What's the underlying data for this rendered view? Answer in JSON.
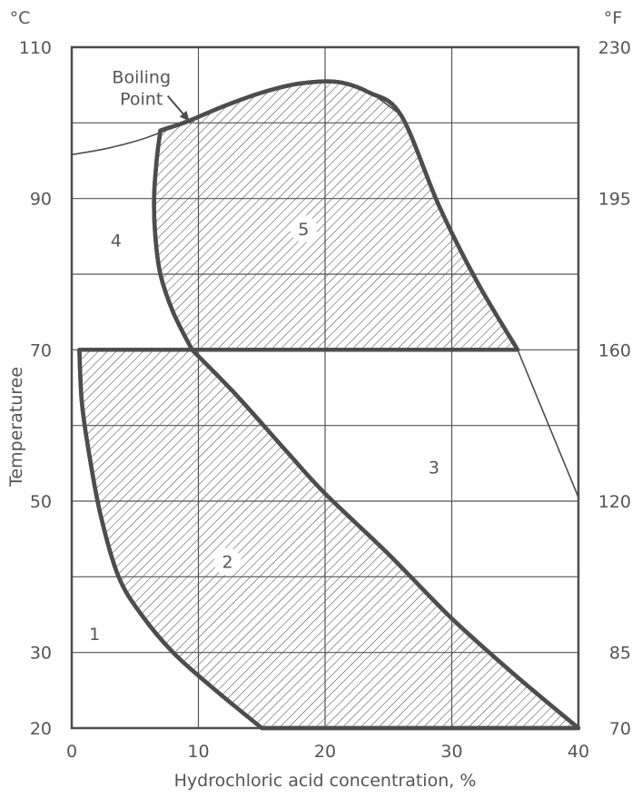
{
  "chart_data": {
    "type": "area",
    "xlabel": "Hydrochloric acid concentration, %",
    "ylabel": "Temperaturee",
    "y_unit_left": "°C",
    "y_unit_right": "°F",
    "xlim": [
      0,
      40
    ],
    "ylim": [
      20,
      110
    ],
    "grid": true,
    "x_ticks": [
      "0",
      "10",
      "20",
      "30",
      "40"
    ],
    "y_ticks_left": [
      {
        "value": 110,
        "label": "110"
      },
      {
        "value": 90,
        "label": "90"
      },
      {
        "value": 70,
        "label": "70"
      },
      {
        "value": 50,
        "label": "50"
      },
      {
        "value": 30,
        "label": "30"
      },
      {
        "value": 20,
        "label": "20"
      }
    ],
    "y_ticks_right": [
      {
        "value": 110,
        "label": "230"
      },
      {
        "value": 90,
        "label": "195"
      },
      {
        "value": 70,
        "label": "160"
      },
      {
        "value": 50,
        "label": "120"
      },
      {
        "value": 30,
        "label": "85"
      },
      {
        "value": 20,
        "label": "70"
      }
    ],
    "boiling_point_curve": [
      [
        0,
        95.8
      ],
      [
        3,
        96.7
      ],
      [
        6,
        98.1
      ],
      [
        9,
        100.1
      ],
      [
        12,
        102.2
      ],
      [
        15,
        104.0
      ],
      [
        18,
        105.2
      ],
      [
        21,
        105.4
      ],
      [
        23.5,
        104.0
      ],
      [
        26,
        101.0
      ]
    ],
    "zone_lower_shaded": {
      "name": "2",
      "left_edge": [
        [
          0.6,
          70
        ],
        [
          0.8,
          63
        ],
        [
          1.4,
          56
        ],
        [
          2.3,
          48
        ],
        [
          3.7,
          40
        ],
        [
          5.5,
          35
        ],
        [
          8,
          30
        ],
        [
          11,
          25.5
        ],
        [
          15,
          20
        ]
      ],
      "right_edge": [
        [
          9.5,
          70
        ],
        [
          13,
          64
        ],
        [
          17,
          56.5
        ],
        [
          20,
          51
        ],
        [
          25,
          43
        ],
        [
          30,
          34.5
        ],
        [
          35,
          27
        ],
        [
          40,
          20
        ]
      ]
    },
    "zone_upper_shaded": {
      "name": "5",
      "boundary": [
        [
          7,
          99
        ],
        [
          6.7,
          95
        ],
        [
          6.5,
          90
        ],
        [
          6.6,
          85
        ],
        [
          7,
          80
        ],
        [
          8,
          75
        ],
        [
          9.5,
          70
        ],
        [
          35.2,
          70
        ],
        [
          32,
          79
        ],
        [
          29,
          89
        ],
        [
          26,
          101
        ],
        [
          23.5,
          104.0
        ],
        [
          21,
          105.4
        ],
        [
          18,
          105.2
        ],
        [
          15,
          104.0
        ],
        [
          12,
          102.2
        ],
        [
          9,
          100.1
        ],
        [
          7,
          99
        ]
      ]
    },
    "extension_line": [
      [
        35.2,
        70
      ],
      [
        40,
        50.5
      ]
    ],
    "zone_labels": [
      {
        "label": "1",
        "x": 1.8,
        "y": 32.5
      },
      {
        "label": "2",
        "x": 12.3,
        "y": 42
      },
      {
        "label": "3",
        "x": 28.6,
        "y": 54.5
      },
      {
        "label": "4",
        "x": 3.5,
        "y": 84.5
      },
      {
        "label": "5",
        "x": 18.3,
        "y": 86
      }
    ],
    "annotations": [
      {
        "text_lines": [
          "Boiling",
          "Point"
        ],
        "x": 5.5,
        "y": 103.8,
        "arrow_to": [
          9.3,
          100.2
        ]
      }
    ]
  }
}
